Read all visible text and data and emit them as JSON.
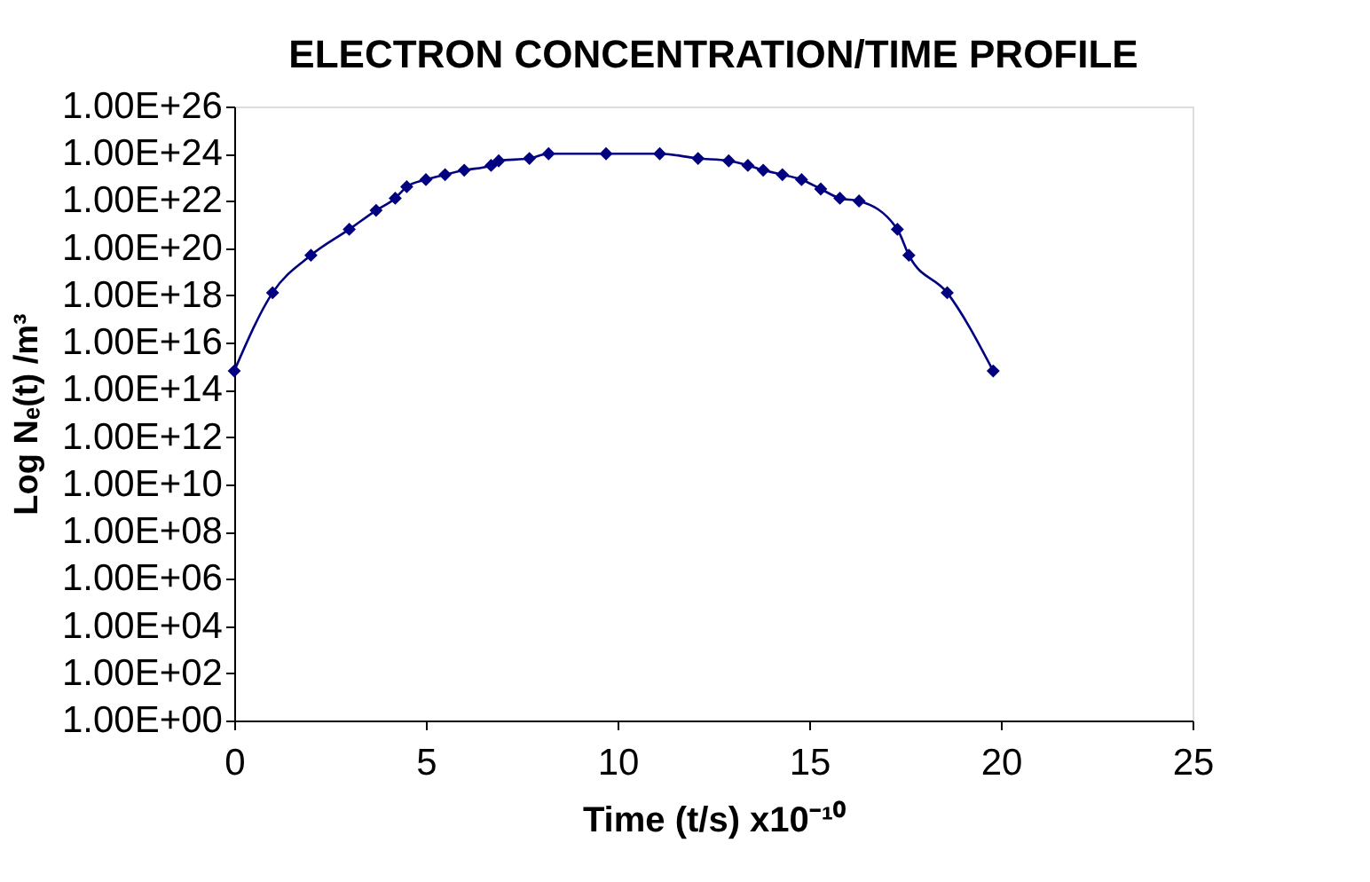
{
  "chart_data": {
    "type": "line",
    "title": "ELECTRON CONCENTRATION/TIME PROFILE",
    "xlabel": "Time (t/s) x10⁻¹⁰",
    "ylabel": "Log Nₑ(t) /m³",
    "log": "y",
    "grid": false,
    "legend": false,
    "marker": "diamond",
    "line_style": "solid",
    "xlim": [
      0,
      25
    ],
    "xticks": [
      0,
      5,
      10,
      15,
      20,
      25
    ],
    "ylim": [
      1,
      1e+26
    ],
    "yticks": [
      {
        "value": 1,
        "label": "1.00E+00"
      },
      {
        "value": 100.0,
        "label": "1.00E+02"
      },
      {
        "value": 10000.0,
        "label": "1.00E+04"
      },
      {
        "value": 1000000.0,
        "label": "1.00E+06"
      },
      {
        "value": 100000000.0,
        "label": "1.00E+08"
      },
      {
        "value": 10000000000.0,
        "label": "1.00E+10"
      },
      {
        "value": 1000000000000.0,
        "label": "1.00E+12"
      },
      {
        "value": 100000000000000.0,
        "label": "1.00E+14"
      },
      {
        "value": 1e+16,
        "label": "1.00E+16"
      },
      {
        "value": 1e+18,
        "label": "1.00E+18"
      },
      {
        "value": 1e+20,
        "label": "1.00E+20"
      },
      {
        "value": 1e+22,
        "label": "1.00E+22"
      },
      {
        "value": 1e+24,
        "label": "1.00E+24"
      },
      {
        "value": 1e+26,
        "label": "1.00E+26"
      }
    ],
    "series": [
      {
        "color": "#000080",
        "x": [
          0,
          1.0,
          2.0,
          3.0,
          3.7,
          4.2,
          4.5,
          5.0,
          5.5,
          6.0,
          6.7,
          6.9,
          7.7,
          8.2,
          9.7,
          11.1,
          12.1,
          12.9,
          13.4,
          13.8,
          14.3,
          14.8,
          15.3,
          15.8,
          16.3,
          17.3,
          17.6,
          18.6,
          19.8
        ],
        "values": [
          630000000000000.0,
          1.3e+18,
          5e+19,
          6.3e+20,
          4e+21,
          1.3e+22,
          4e+22,
          8e+22,
          1.3e+23,
          2e+23,
          3.2e+23,
          5e+23,
          6.3e+23,
          1e+24,
          1e+24,
          1e+24,
          6.3e+23,
          5e+23,
          3.2e+23,
          2e+23,
          1.3e+23,
          8e+22,
          3.2e+22,
          1.3e+22,
          1e+22,
          6.3e+20,
          5e+19,
          1.3e+18,
          630000000000000.0
        ]
      }
    ]
  }
}
